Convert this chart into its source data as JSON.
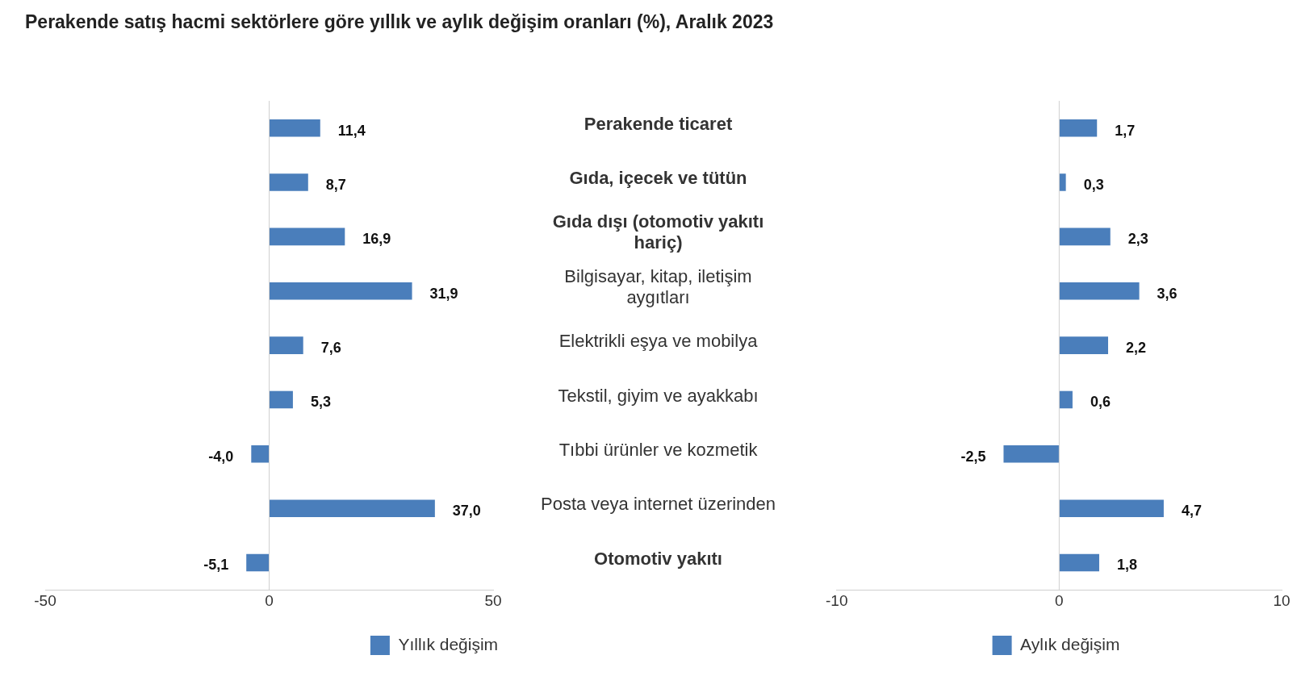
{
  "chart_data": [
    {
      "type": "bar",
      "orientation": "horizontal",
      "title": "Perakende satış hacmi sektörlere göre yıllık ve aylık değişim oranları (%), Aralık 2023",
      "categories": [
        "Perakende ticaret",
        "Gıda, içecek ve tütün",
        "Gıda dışı (otomotiv yakıtı hariç)",
        "Bilgisayar, kitap, iletişim aygıtları",
        "Elektrikli eşya ve mobilya",
        "Tekstil, giyim ve ayakkabı",
        "Tıbbi ürünler ve kozmetik",
        "Posta veya internet üzerinden",
        "Otomotiv yakıtı"
      ],
      "series": [
        {
          "name": "Yıllık değişim",
          "color": "#4a7ebb",
          "values": [
            11.4,
            8.7,
            16.9,
            31.9,
            7.6,
            5.3,
            -4.0,
            37.0,
            -5.1
          ],
          "value_labels": [
            "11,4",
            "8,7",
            "16,9",
            "31,9",
            "7,6",
            "5,3",
            "-4,0",
            "37,0",
            "-5,1"
          ]
        }
      ],
      "xlim": [
        -50,
        50
      ],
      "xticks": [
        -50,
        0,
        50
      ],
      "ref_lines": [
        {
          "axis": "x",
          "value": 0
        }
      ],
      "legend": "bottom"
    },
    {
      "type": "bar",
      "orientation": "horizontal",
      "categories": [
        null,
        null,
        null,
        null,
        null,
        null,
        null,
        null,
        null
      ],
      "series": [
        {
          "name": "Aylık değişim",
          "color": "#4a7ebb",
          "values": [
            1.7,
            0.3,
            2.3,
            3.6,
            2.2,
            0.6,
            -2.5,
            4.7,
            1.8
          ],
          "value_labels": [
            "1,7",
            "0,3",
            "2,3",
            "3,6",
            "2,2",
            "0,6",
            "-2,5",
            "4,7",
            "1,8"
          ]
        }
      ],
      "xlim": [
        -10,
        10
      ],
      "xticks": [
        -10,
        0,
        10
      ],
      "ref_lines": [
        {
          "axis": "x",
          "value": 0
        }
      ],
      "legend": "bottom",
      "tick_labels": "x"
    }
  ]
}
